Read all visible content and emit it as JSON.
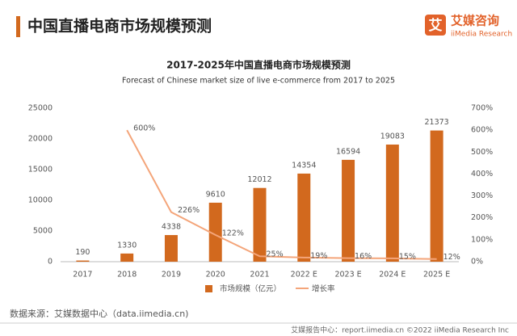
{
  "header": {
    "title": "中国直播电商市场规模预测",
    "logo_icon": "艾",
    "logo": "艾媒咨询",
    "logo_sub": "iiMedia Research"
  },
  "chart_data": {
    "type": "bar",
    "title": "2017-2025年中国直播电商市场规模预测",
    "subtitle": "Forecast of Chinese market size of live e-commerce from 2017 to 2025",
    "categories": [
      "2017",
      "2018",
      "2019",
      "2020",
      "2021",
      "2022 E",
      "2023 E",
      "2024 E",
      "2025 E"
    ],
    "series": [
      {
        "name": "市场规模（亿元）",
        "type": "bar",
        "color": "#d2691e",
        "values": [
          190,
          1330,
          4338,
          9610,
          12012,
          14354,
          16594,
          19083,
          21373
        ]
      },
      {
        "name": "增长率",
        "type": "line",
        "axis": "y2",
        "color": "#f4a57a",
        "values": [
          null,
          600,
          226,
          122,
          25,
          19,
          16,
          15,
          12
        ],
        "value_labels": [
          null,
          "600%",
          "226%",
          "122%",
          "25%",
          "19%",
          "16%",
          "15%",
          "12%"
        ]
      }
    ],
    "ylim": [
      0,
      25000
    ],
    "yticks": [
      0,
      5000,
      10000,
      15000,
      20000,
      25000
    ],
    "y2lim": [
      0,
      700
    ],
    "y2ticks": [
      {
        "value": 0,
        "label": "0%"
      },
      {
        "value": 100,
        "label": "100%"
      },
      {
        "value": 200,
        "label": "200%"
      },
      {
        "value": 300,
        "label": "300%"
      },
      {
        "value": 400,
        "label": "400%"
      },
      {
        "value": 500,
        "label": "500%"
      },
      {
        "value": 600,
        "label": "600%"
      },
      {
        "value": 700,
        "label": "700%"
      }
    ],
    "legend": "bottom"
  },
  "source": "数据来源：艾媒数据中心（data.iimedia.cn)",
  "footer": "艾媒报告中心：report.iimedia.cn ©2022 iiMedia Research Inc"
}
